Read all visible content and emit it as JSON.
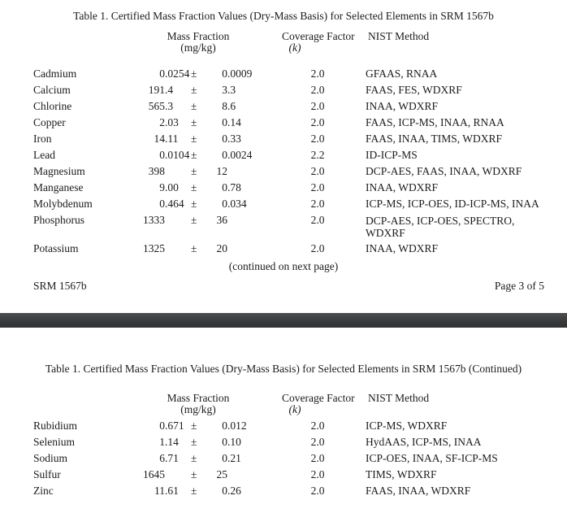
{
  "symbols": {
    "plus_minus": "±"
  },
  "page3": {
    "title": "Table 1.  Certified Mass Fraction Values (Dry-Mass Basis) for Selected Elements in SRM 1567b",
    "headers": {
      "mass_fraction": "Mass Fraction",
      "mass_fraction_unit": "(mg/kg)",
      "coverage_factor": "Coverage Factor",
      "coverage_factor_unit": "(k)",
      "nist_method": "NIST Method"
    },
    "rows": [
      {
        "element": "Cadmium",
        "value_int": "0",
        "value_dec": ".0254",
        "unc_int": "0",
        "unc_dec": ".0009",
        "k": "2.0",
        "method": "GFAAS, RNAA"
      },
      {
        "element": "Calcium",
        "value_int": "191",
        "value_dec": ".4",
        "unc_int": "3",
        "unc_dec": ".3",
        "k": "2.0",
        "method": "FAAS, FES, WDXRF"
      },
      {
        "element": "Chlorine",
        "value_int": "565",
        "value_dec": ".3",
        "unc_int": "8",
        "unc_dec": ".6",
        "k": "2.0",
        "method": "INAA, WDXRF"
      },
      {
        "element": "Copper",
        "value_int": "2",
        "value_dec": ".03",
        "unc_int": "0",
        "unc_dec": ".14",
        "k": "2.0",
        "method": "FAAS, ICP-MS, INAA, RNAA"
      },
      {
        "element": "Iron",
        "value_int": "14",
        "value_dec": ".11",
        "unc_int": "0",
        "unc_dec": ".33",
        "k": "2.0",
        "method": "FAAS, INAA, TIMS, WDXRF"
      },
      {
        "element": "Lead",
        "value_int": "0",
        "value_dec": ".0104",
        "unc_int": "0",
        "unc_dec": ".0024",
        "k": "2.2",
        "method": "ID-ICP-MS"
      },
      {
        "element": "Magnesium",
        "value_int": "398",
        "value_dec": "",
        "unc_int": "12",
        "unc_dec": "",
        "k": "2.0",
        "method": "DCP-AES, FAAS, INAA, WDXRF"
      },
      {
        "element": "Manganese",
        "value_int": "9",
        "value_dec": ".00",
        "unc_int": "0",
        "unc_dec": ".78",
        "k": "2.0",
        "method": "INAA, WDXRF"
      },
      {
        "element": "Molybdenum",
        "value_int": "0",
        "value_dec": ".464",
        "unc_int": "0",
        "unc_dec": ".034",
        "k": "2.0",
        "method": "ICP-MS, ICP-OES, ID-ICP-MS, INAA"
      },
      {
        "element": "Phosphorus",
        "value_int": "1333",
        "value_dec": "",
        "unc_int": "36",
        "unc_dec": "",
        "k": "2.0",
        "method": "DCP-AES, ICP-OES, SPECTRO,",
        "method_line2": "WDXRF"
      },
      {
        "element": "Potassium",
        "value_int": "1325",
        "value_dec": "",
        "unc_int": "20",
        "unc_dec": "",
        "k": "2.0",
        "method": "INAA, WDXRF"
      }
    ],
    "continued_note": "(continued on next page)",
    "footer_left": "SRM 1567b",
    "footer_right": "Page 3 of 5"
  },
  "page4": {
    "title": "Table 1.  Certified Mass Fraction Values (Dry-Mass Basis) for Selected Elements in SRM 1567b (Continued)",
    "headers": {
      "mass_fraction": "Mass Fraction",
      "mass_fraction_unit": "(mg/kg)",
      "coverage_factor": "Coverage Factor",
      "coverage_factor_unit": "(k)",
      "nist_method": "NIST Method"
    },
    "rows": [
      {
        "element": "Rubidium",
        "value_int": "0",
        "value_dec": ".671",
        "unc_int": "0",
        "unc_dec": ".012",
        "k": "2.0",
        "method": "ICP-MS, WDXRF"
      },
      {
        "element": "Selenium",
        "value_int": "1",
        "value_dec": ".14",
        "unc_int": "0",
        "unc_dec": ".10",
        "k": "2.0",
        "method": "HydAAS, ICP-MS, INAA"
      },
      {
        "element": "Sodium",
        "value_int": "6",
        "value_dec": ".71",
        "unc_int": "0",
        "unc_dec": ".21",
        "k": "2.0",
        "method": "ICP-OES, INAA, SF-ICP-MS"
      },
      {
        "element": "Sulfur",
        "value_int": "1645",
        "value_dec": "",
        "unc_int": "25",
        "unc_dec": "",
        "k": "2.0",
        "method": "TIMS, WDXRF"
      },
      {
        "element": "Zinc",
        "value_int": "11",
        "value_dec": ".61",
        "unc_int": "0",
        "unc_dec": ".26",
        "k": "2.0",
        "method": "FAAS, INAA, WDXRF"
      }
    ]
  },
  "divider_color": {
    "top": "#4b4e51",
    "bottom": "#2f3235"
  }
}
